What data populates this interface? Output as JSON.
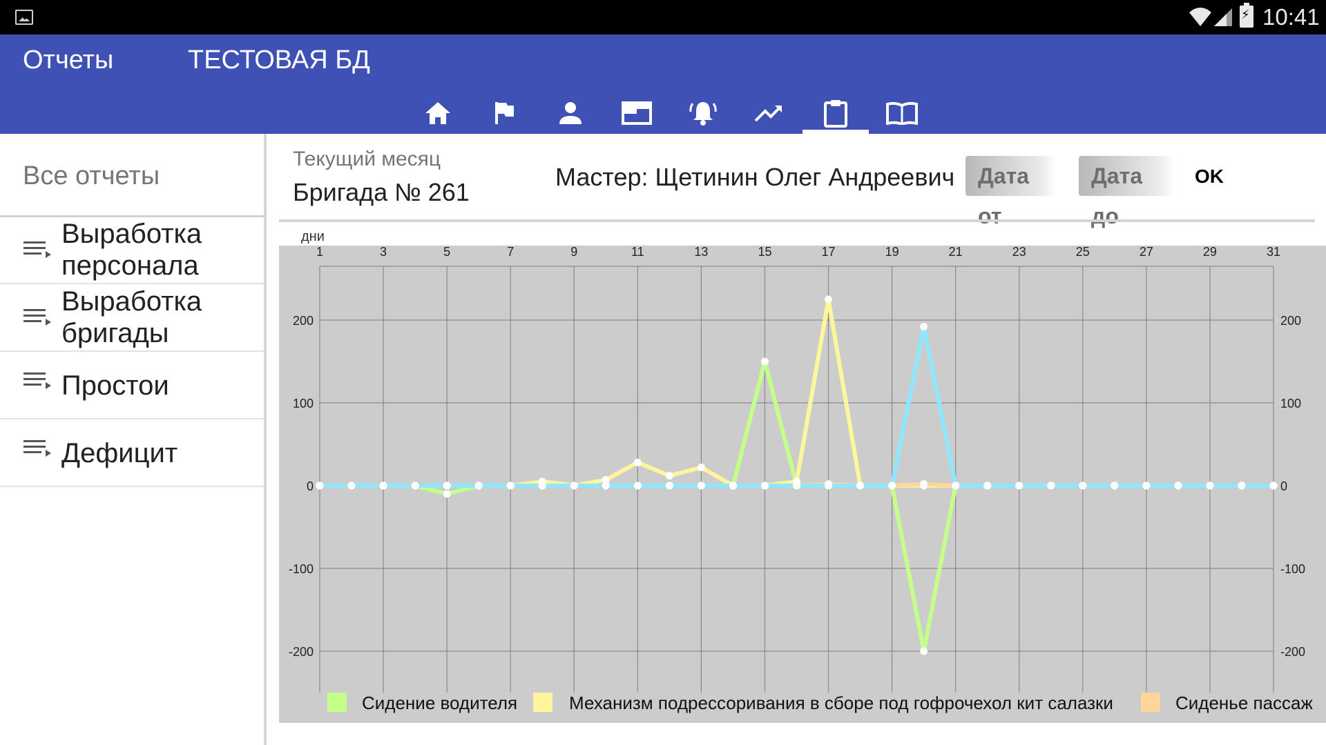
{
  "status_bar": {
    "time": "10:41"
  },
  "app_bar": {
    "title": "Отчеты",
    "database": "ТЕСТОВАЯ БД",
    "nav_tabs": [
      {
        "icon": "home-icon",
        "active": false
      },
      {
        "icon": "flag-icon",
        "active": false
      },
      {
        "icon": "person-icon",
        "active": false
      },
      {
        "icon": "window-icon",
        "active": false
      },
      {
        "icon": "alarm-icon",
        "active": false
      },
      {
        "icon": "trending-up-icon",
        "active": false
      },
      {
        "icon": "clipboard-icon",
        "active": true
      },
      {
        "icon": "book-icon",
        "active": false
      }
    ]
  },
  "sidebar": {
    "header": "Все отчеты",
    "items": [
      {
        "line1": "Выработка",
        "line2": "персонала"
      },
      {
        "line1": "Выработка",
        "line2": "бригады"
      },
      {
        "line1": "Простои",
        "line2": ""
      },
      {
        "line1": "Дефицит",
        "line2": ""
      }
    ]
  },
  "report": {
    "period": "Текущий месяц",
    "brigade": "Бригада № 261",
    "master": "Мастер: Щетинин Олег Андреевич",
    "date_from": "Дата от",
    "date_to": "Дата до",
    "ok": "OK"
  },
  "chart_data": {
    "type": "line",
    "xlabel": "дни",
    "x_ticks": [
      1,
      3,
      5,
      7,
      9,
      11,
      13,
      15,
      17,
      19,
      21,
      23,
      25,
      27,
      29,
      31
    ],
    "y_ticks": [
      200,
      100,
      0,
      -100,
      -200
    ],
    "xlim": [
      1,
      31
    ],
    "ylim": [
      -240,
      265
    ],
    "grid": true,
    "legend_position": "bottom",
    "background": "#cccccc",
    "series": [
      {
        "name": "Сидение водителя",
        "color": "#c4ff8a",
        "values": [
          0,
          0,
          0,
          0,
          -10,
          0,
          0,
          0,
          0,
          0,
          0,
          0,
          0,
          0,
          150,
          0,
          0,
          0,
          0,
          -200,
          0,
          0,
          0,
          0,
          0,
          0,
          0,
          0,
          0,
          0,
          0
        ]
      },
      {
        "name": "Механизм подрессоривания в сборе под гофрочехол кит салазки",
        "color": "#fff59d",
        "values": [
          0,
          0,
          0,
          0,
          0,
          0,
          0,
          5,
          0,
          7,
          28,
          12,
          22,
          0,
          0,
          5,
          225,
          0,
          0,
          0,
          0,
          0,
          0,
          0,
          0,
          0,
          0,
          0,
          0,
          0,
          0
        ]
      },
      {
        "name": "Сиденье пассаж",
        "color": "#ffd699",
        "values": [
          0,
          0,
          0,
          0,
          0,
          0,
          0,
          0,
          0,
          0,
          0,
          0,
          0,
          0,
          0,
          0,
          2,
          0,
          0,
          2,
          0,
          0,
          0,
          0,
          0,
          0,
          0,
          0,
          0,
          0,
          0
        ]
      },
      {
        "name": "",
        "color": "#8ee7ff",
        "values": [
          0,
          0,
          0,
          0,
          0,
          0,
          0,
          0,
          0,
          0,
          0,
          0,
          0,
          0,
          0,
          0,
          0,
          0,
          0,
          192,
          0,
          0,
          0,
          0,
          0,
          0,
          0,
          0,
          0,
          0,
          0
        ]
      }
    ]
  }
}
